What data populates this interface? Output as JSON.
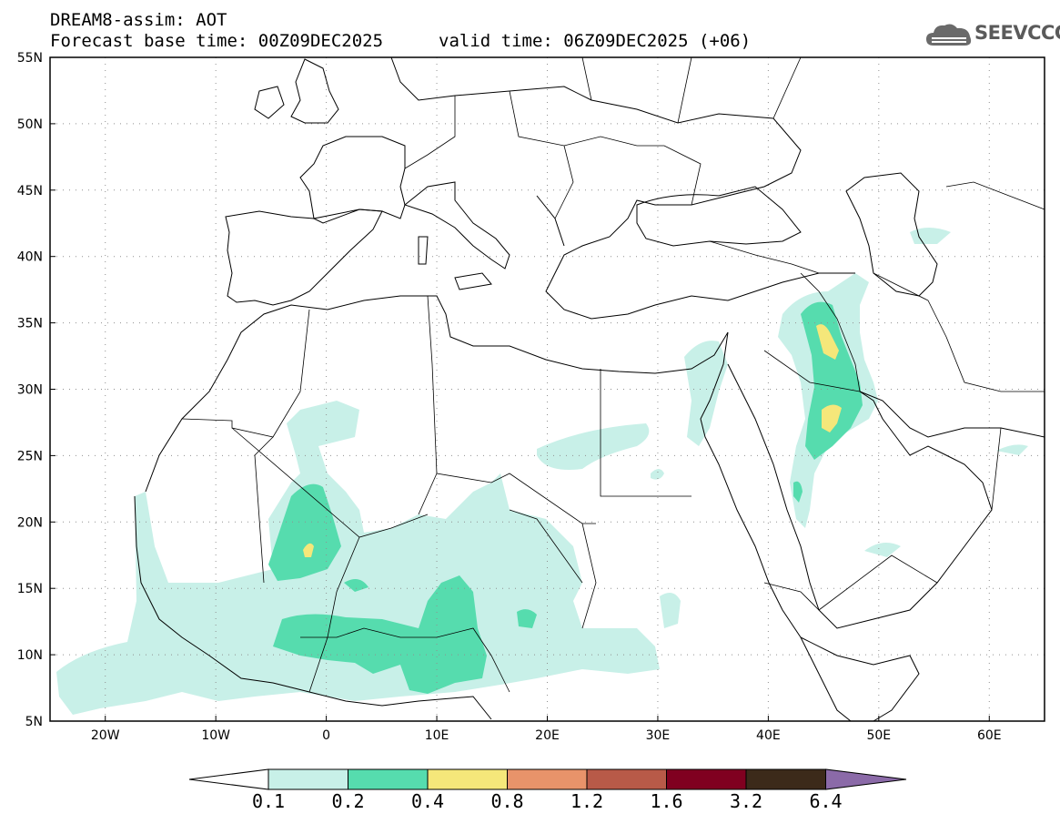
{
  "header": {
    "title": "DREAM8-assim: AOT",
    "base_time": "Forecast base time: 00Z09DEC2025",
    "valid_time": "valid time: 06Z09DEC2025 (+06)"
  },
  "logo": {
    "text": "SEEVCCC",
    "icon": "cloud-logo-icon"
  },
  "map": {
    "lon_range": [
      -25,
      65
    ],
    "lat_range": [
      5,
      55
    ],
    "lat_labels": [
      "55N",
      "50N",
      "45N",
      "40N",
      "35N",
      "30N",
      "25N",
      "20N",
      "15N",
      "10N",
      "5N"
    ],
    "lon_labels": [
      "20W",
      "10W",
      "0",
      "10E",
      "20E",
      "30E",
      "40E",
      "50E",
      "60E"
    ],
    "grid": "dotted"
  },
  "colorbar": {
    "thresholds": [
      "0.1",
      "0.2",
      "0.4",
      "0.8",
      "1.2",
      "1.6",
      "3.2",
      "6.4"
    ],
    "colors": [
      "#c8f0e8",
      "#56dcae",
      "#f5e77a",
      "#e8936a",
      "#b85a48",
      "#800020",
      "#3c2a1a",
      "#8b6aa8"
    ],
    "under_color": "#ffffff"
  }
}
